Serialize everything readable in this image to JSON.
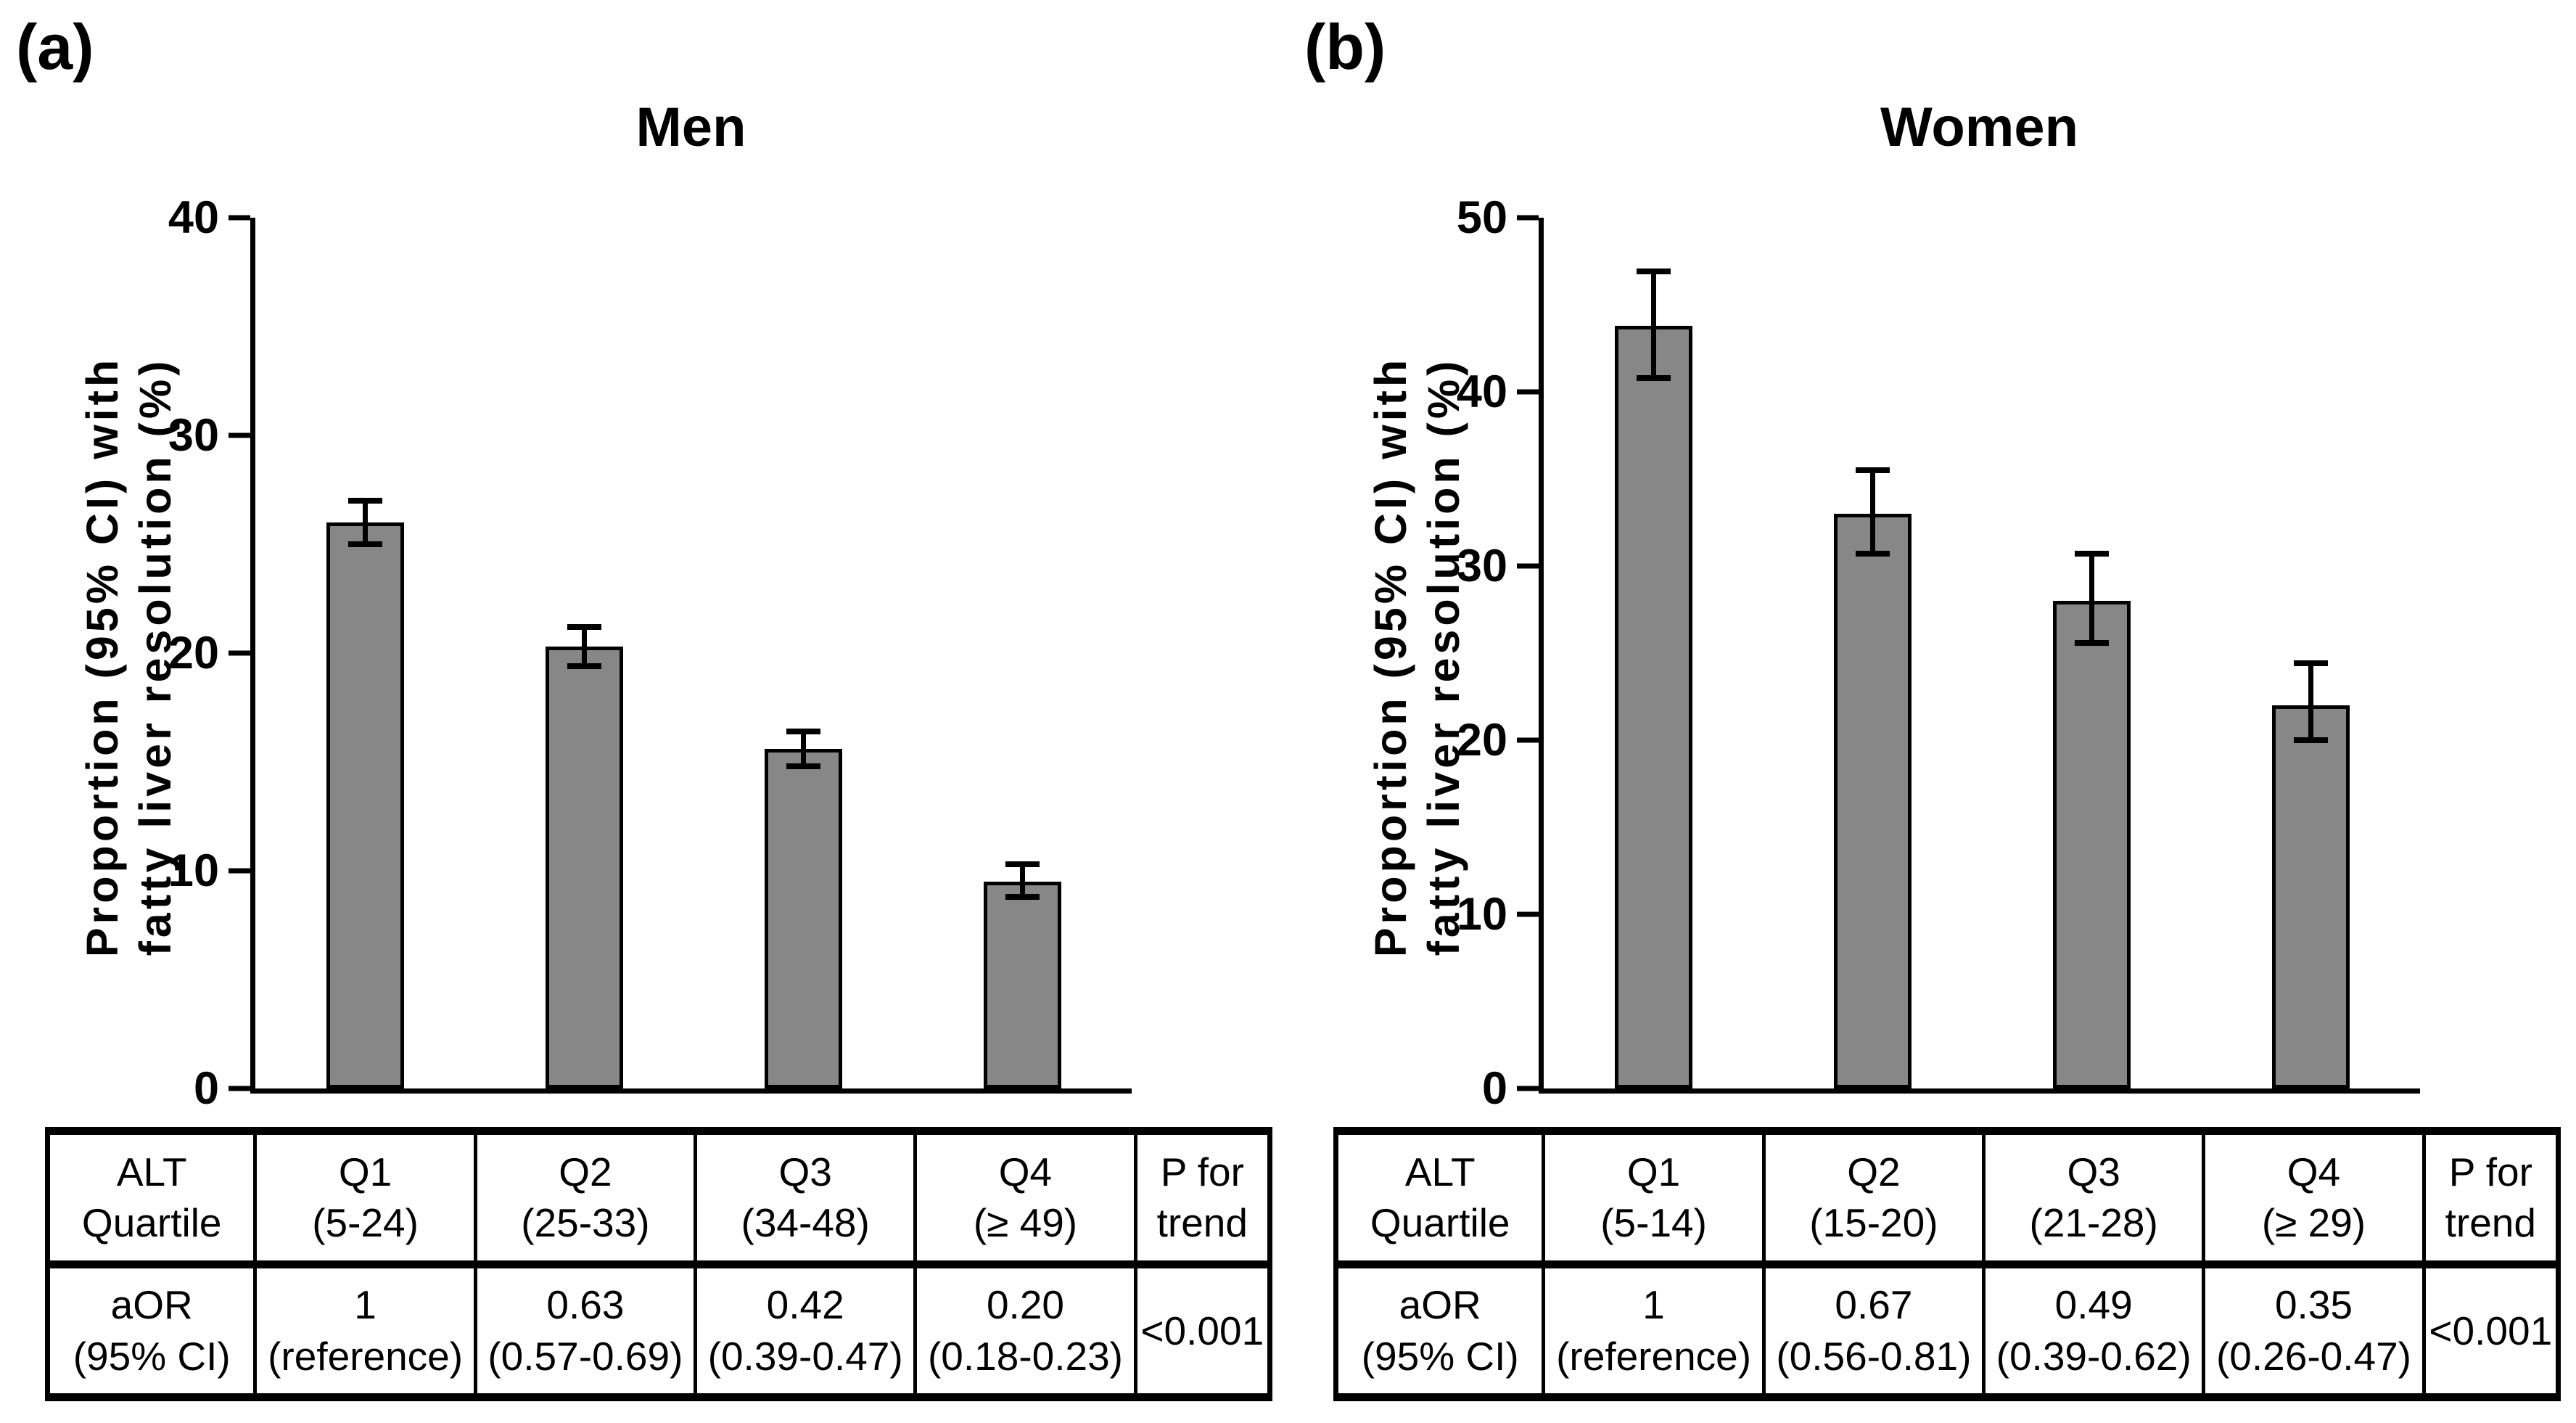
{
  "panels": [
    {
      "label": "(a)",
      "title": "Men",
      "y_axis_label": [
        "Proportion (95% CI) with",
        "fatty liver resolution (%)"
      ]
    },
    {
      "label": "(b)",
      "title": "Women",
      "y_axis_label": [
        "Proportion (95% CI) with",
        "fatty liver resolution (%)"
      ]
    }
  ],
  "chart_data": [
    {
      "type": "bar",
      "title": "Men",
      "categories": [
        "Q1 (5-24)",
        "Q2 (25-33)",
        "Q3 (34-48)",
        "Q4 (≥ 49)"
      ],
      "values": [
        26.0,
        20.3,
        15.6,
        9.5
      ],
      "ci_low": [
        25.0,
        19.4,
        14.8,
        8.8
      ],
      "ci_high": [
        27.0,
        21.2,
        16.4,
        10.3
      ],
      "xlabel": "",
      "ylabel": "Proportion (95% CI) with fatty liver resolution (%)",
      "ylim": [
        0,
        40
      ],
      "yticks": [
        0,
        10,
        20,
        30,
        40
      ],
      "grid": false,
      "legend_position": "none",
      "bar_color": "#878787",
      "error_bar_color": "#000000"
    },
    {
      "type": "bar",
      "title": "Women",
      "categories": [
        "Q1 (5-14)",
        "Q2 (15-20)",
        "Q3 (21-28)",
        "Q4 (≥ 29)"
      ],
      "values": [
        43.8,
        33.0,
        28.0,
        22.0
      ],
      "ci_low": [
        40.8,
        30.7,
        25.6,
        20.0
      ],
      "ci_high": [
        46.9,
        35.5,
        30.7,
        24.4
      ],
      "xlabel": "",
      "ylabel": "Proportion (95% CI) with fatty liver resolution (%)",
      "ylim": [
        0,
        50
      ],
      "yticks": [
        0,
        10,
        20,
        30,
        40,
        50
      ],
      "grid": false,
      "legend_position": "none",
      "bar_color": "#878787",
      "error_bar_color": "#000000"
    }
  ],
  "tables": [
    {
      "rows": [
        {
          "cells": [
            [
              "ALT",
              "Quartile"
            ],
            [
              "Q1",
              "(5-24)"
            ],
            [
              "Q2",
              "(25-33)"
            ],
            [
              "Q3",
              "(34-48)"
            ],
            [
              "Q4",
              "(≥ 49)"
            ],
            [
              "P for",
              "trend"
            ]
          ]
        },
        {
          "cells": [
            [
              "aOR",
              "(95% CI)"
            ],
            [
              "1",
              "(reference)"
            ],
            [
              "0.63",
              "(0.57-0.69)"
            ],
            [
              "0.42",
              "(0.39-0.47)"
            ],
            [
              "0.20",
              "(0.18-0.23)"
            ],
            [
              "<0.001"
            ]
          ]
        }
      ]
    },
    {
      "rows": [
        {
          "cells": [
            [
              "ALT",
              "Quartile"
            ],
            [
              "Q1",
              "(5-14)"
            ],
            [
              "Q2",
              "(15-20)"
            ],
            [
              "Q3",
              "(21-28)"
            ],
            [
              "Q4",
              "(≥ 29)"
            ],
            [
              "P for",
              "trend"
            ]
          ]
        },
        {
          "cells": [
            [
              "aOR",
              "(95% CI)"
            ],
            [
              "1",
              "(reference)"
            ],
            [
              "0.67",
              "(0.56-0.81)"
            ],
            [
              "0.49",
              "(0.39-0.62)"
            ],
            [
              "0.35",
              "(0.26-0.47)"
            ],
            [
              "<0.001"
            ]
          ]
        }
      ]
    }
  ]
}
